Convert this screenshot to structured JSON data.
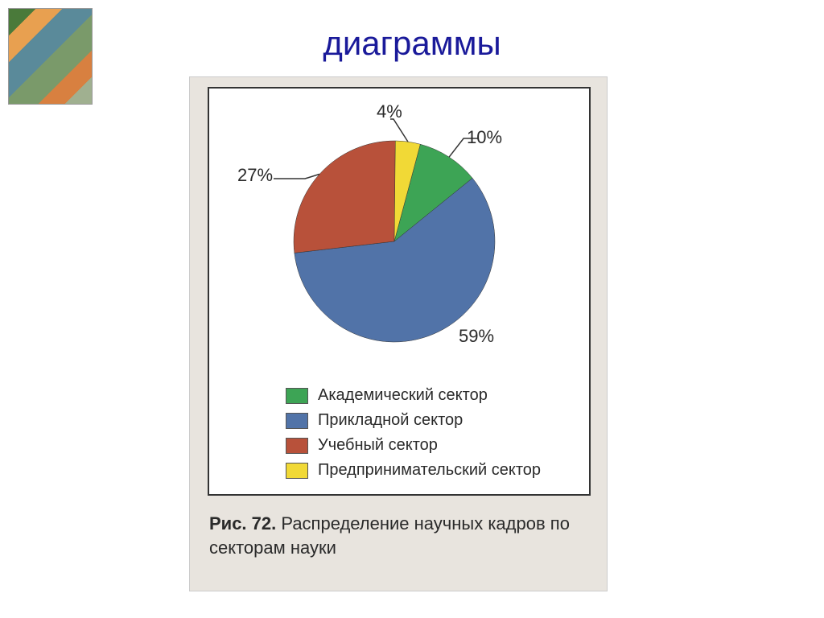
{
  "title": "диаграммы",
  "chart": {
    "type": "pie",
    "background_color": "#ffffff",
    "frame_bg": "#e8e4de",
    "slices": [
      {
        "label": "Академический сектор",
        "value": 10,
        "color": "#3da455",
        "text": "10%"
      },
      {
        "label": "Прикладной сектор",
        "value": 59,
        "color": "#5173a8",
        "text": "59%"
      },
      {
        "label": "Учебный сектор",
        "value": 27,
        "color": "#b8513a",
        "text": "27%"
      },
      {
        "label": "Предпринимательский сектор",
        "value": 4,
        "color": "#f1d936",
        "text": "4%"
      }
    ],
    "label_fontsize": 22,
    "legend_fontsize": 20,
    "start_angle_deg": -75,
    "direction": "clockwise"
  },
  "caption_prefix": "Рис. 72.",
  "caption_text": "Распределение научных кадров по секторам науки"
}
